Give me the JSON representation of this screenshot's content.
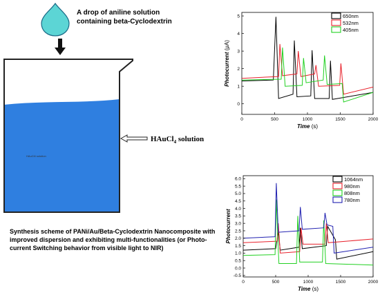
{
  "drop_label_line1": "A drop of aniline solution",
  "drop_label_line2": "containing beta-Cyclodextrin",
  "solution_label": "HAuCl4 solution",
  "solution_label_main": "HAuCl",
  "solution_label_sub": "4",
  "solution_label_tail": " solution",
  "beaker_inner_label": "HAuCl4 solution",
  "caption": "Synthesis scheme of PANi/Au/Beta-Cyclodextrin Nanocomposite with improved dispersion and exhibiting multi-functionalities (or Photo-current Switching behavior from visible light to NIR)",
  "colors": {
    "liquid": "#2f7fe0",
    "drop": "#5cd5d5",
    "series_black": "#000000",
    "series_red": "#e8202a",
    "series_green": "#20d020",
    "series_blue": "#2020b0"
  },
  "chart_data": [
    {
      "type": "line",
      "xlabel": "Time (s)",
      "ylabel": "Photocurrent (μA)",
      "xlim": [
        0,
        2000
      ],
      "ylim": [
        -0.6,
        5.2
      ],
      "xticks": [
        0,
        500,
        1000,
        1500,
        2000
      ],
      "yticks": [
        0,
        1,
        2,
        3,
        4,
        5
      ],
      "legend_position": "top-right",
      "series": [
        {
          "name": "650nm",
          "color": "#000000",
          "points": [
            [
              0,
              1.3
            ],
            [
              480,
              1.35
            ],
            [
              520,
              4.95
            ],
            [
              560,
              0.3
            ],
            [
              780,
              0.55
            ],
            [
              800,
              3.6
            ],
            [
              840,
              0.4
            ],
            [
              1050,
              0.45
            ],
            [
              1070,
              3.05
            ],
            [
              1110,
              0.3
            ],
            [
              1330,
              0.3
            ],
            [
              1350,
              2.45
            ],
            [
              1380,
              0.25
            ],
            [
              2000,
              0.65
            ]
          ]
        },
        {
          "name": "532nm",
          "color": "#e8202a",
          "points": [
            [
              0,
              1.45
            ],
            [
              560,
              1.55
            ],
            [
              580,
              3.4
            ],
            [
              620,
              1.6
            ],
            [
              840,
              1.7
            ],
            [
              860,
              3.0
            ],
            [
              900,
              1.55
            ],
            [
              1110,
              1.7
            ],
            [
              1130,
              2.2
            ],
            [
              1170,
              1.0
            ],
            [
              1490,
              1.05
            ],
            [
              1510,
              2.3
            ],
            [
              1550,
              0.55
            ],
            [
              2000,
              0.95
            ]
          ]
        },
        {
          "name": "405nm",
          "color": "#20d020",
          "points": [
            [
              0,
              1.35
            ],
            [
              600,
              1.4
            ],
            [
              620,
              3.2
            ],
            [
              660,
              1.0
            ],
            [
              920,
              1.05
            ],
            [
              940,
              2.6
            ],
            [
              980,
              1.2
            ],
            [
              1240,
              1.35
            ],
            [
              1260,
              2.75
            ],
            [
              1300,
              1.1
            ],
            [
              1530,
              1.15
            ],
            [
              1550,
              0.1
            ],
            [
              2000,
              0.65
            ]
          ]
        }
      ]
    },
    {
      "type": "line",
      "xlabel": "Time (s)",
      "ylabel": "Photocurrent",
      "xlim": [
        0,
        2000
      ],
      "ylim": [
        -0.6,
        6.2
      ],
      "xticks": [
        0,
        500,
        1000,
        1500,
        2000
      ],
      "yticks": [
        -0.5,
        0.0,
        0.5,
        1.0,
        1.5,
        2.0,
        2.5,
        3.0,
        3.5,
        4.0,
        4.5,
        5.0,
        5.5,
        6.0
      ],
      "legend_position": "top-right",
      "series": [
        {
          "name": "1064nm",
          "color": "#000000",
          "points": [
            [
              0,
              1.2
            ],
            [
              500,
              1.3
            ],
            [
              540,
              2.4
            ],
            [
              570,
              1.2
            ],
            [
              860,
              1.4
            ],
            [
              880,
              2.7
            ],
            [
              910,
              1.3
            ],
            [
              1280,
              1.5
            ],
            [
              1300,
              2.8
            ],
            [
              1420,
              1.9
            ],
            [
              1440,
              0.6
            ],
            [
              2000,
              1.1
            ]
          ]
        },
        {
          "name": "980nm",
          "color": "#e8202a",
          "points": [
            [
              0,
              1.7
            ],
            [
              520,
              1.8
            ],
            [
              540,
              3.0
            ],
            [
              570,
              1.0
            ],
            [
              870,
              1.1
            ],
            [
              890,
              2.7
            ],
            [
              920,
              1.6
            ],
            [
              1260,
              1.6
            ],
            [
              1280,
              3.0
            ],
            [
              1310,
              1.7
            ],
            [
              2000,
              1.95
            ]
          ]
        },
        {
          "name": "808nm",
          "color": "#20d020",
          "points": [
            [
              0,
              0.85
            ],
            [
              490,
              0.9
            ],
            [
              510,
              4.6
            ],
            [
              540,
              1.2
            ],
            [
              550,
              0.3
            ],
            [
              820,
              0.3
            ],
            [
              840,
              3.5
            ],
            [
              870,
              0.4
            ],
            [
              1220,
              0.4
            ],
            [
              1240,
              3.2
            ],
            [
              1270,
              0.3
            ],
            [
              2000,
              0.2
            ]
          ]
        },
        {
          "name": "780nm",
          "color": "#2020b0",
          "points": [
            [
              0,
              2.0
            ],
            [
              490,
              2.1
            ],
            [
              510,
              5.7
            ],
            [
              540,
              2.4
            ],
            [
              860,
              2.5
            ],
            [
              880,
              4.1
            ],
            [
              910,
              2.6
            ],
            [
              1240,
              2.7
            ],
            [
              1260,
              3.7
            ],
            [
              1290,
              2.9
            ],
            [
              1380,
              2.8
            ],
            [
              1400,
              1.0
            ],
            [
              2000,
              1.4
            ]
          ]
        }
      ]
    }
  ]
}
